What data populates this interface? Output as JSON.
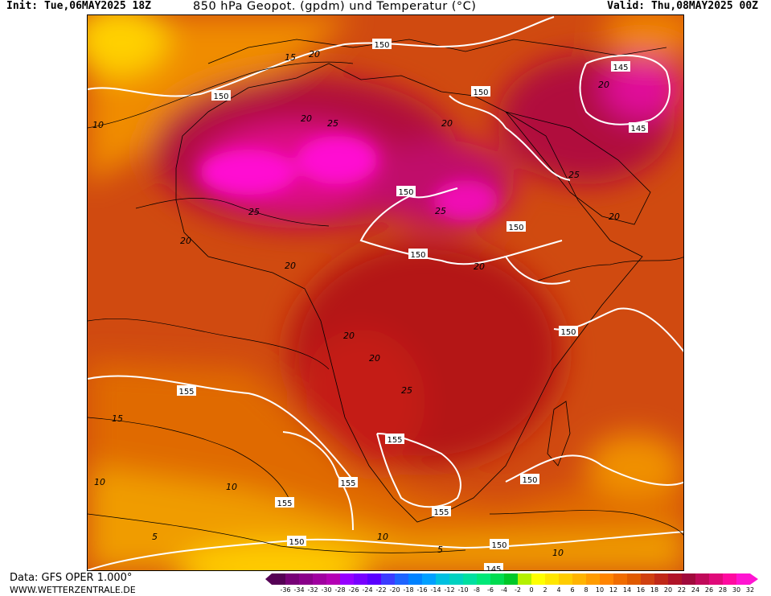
{
  "header": {
    "init": "Init: Tue,06MAY2025 18Z",
    "title": "850 hPa Geopot. (gpdm) und Temperatur (°C)",
    "valid": "Valid: Thu,08MAY2025 00Z"
  },
  "footer": {
    "data_source": "Data: GFS OPER 1.000°",
    "website": "WWW.WETTERZENTRALE.DE"
  },
  "map": {
    "region": "Africa",
    "geopotential_labels": [
      "150",
      "150",
      "150",
      "145",
      "145",
      "150",
      "150",
      "150",
      "150",
      "155",
      "155",
      "155",
      "155",
      "155",
      "150",
      "150",
      "150",
      "145"
    ],
    "temperature_labels": [
      "15",
      "20",
      "10",
      "20",
      "25",
      "20",
      "20",
      "20",
      "25",
      "25",
      "20",
      "25",
      "20",
      "20",
      "20",
      "20",
      "25",
      "15",
      "10",
      "10",
      "5",
      "10",
      "10",
      "5"
    ]
  },
  "colorbar": {
    "ticks": [
      "-36",
      "-34",
      "-32",
      "-30",
      "-28",
      "-26",
      "-24",
      "-22",
      "-20",
      "-18",
      "-16",
      "-14",
      "-12",
      "-10",
      "-8",
      "-6",
      "-4",
      "-2",
      "0",
      "2",
      "4",
      "6",
      "8",
      "10",
      "12",
      "14",
      "16",
      "18",
      "20",
      "22",
      "24",
      "26",
      "28",
      "30",
      "32"
    ],
    "colors": [
      "#550055",
      "#770077",
      "#8a008a",
      "#a000a0",
      "#b400b4",
      "#9600ff",
      "#7800ff",
      "#5a00ff",
      "#3c3cff",
      "#1e64ff",
      "#0082ff",
      "#00a0ff",
      "#00c0e0",
      "#00d2c0",
      "#00e0a0",
      "#00e878",
      "#00dc50",
      "#00c828",
      "#b4f000",
      "#ffff00",
      "#ffe600",
      "#ffcc00",
      "#ffb400",
      "#ff9c00",
      "#ff8400",
      "#f06c00",
      "#e05a00",
      "#d04010",
      "#c02818",
      "#b01428",
      "#a00a3c",
      "#c00a5a",
      "#e00a7a",
      "#ff0aa0",
      "#ff14d2"
    ]
  }
}
